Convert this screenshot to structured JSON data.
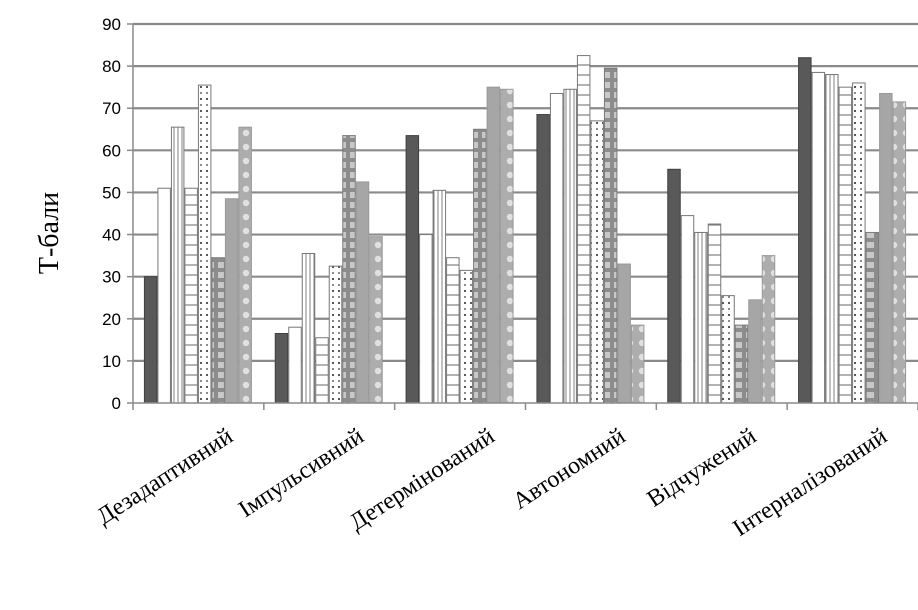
{
  "chart_data": {
    "type": "bar",
    "ylabel": "Т-бали",
    "ylim": [
      0,
      90
    ],
    "yticks": [
      0,
      10,
      20,
      30,
      40,
      50,
      60,
      70,
      80,
      90
    ],
    "grid": true,
    "categories": [
      "Дезадаптивний",
      "Імпульсивний",
      "Детермінований",
      "Автономний",
      "Відчужений",
      "Інтерналізований"
    ],
    "series": [
      {
        "color": "#595959",
        "pattern": "solid",
        "values": [
          30,
          16.5,
          63.5,
          68.5,
          55.5,
          82
        ]
      },
      {
        "color": "#ffffff",
        "pattern": "outline",
        "values": [
          51,
          18,
          40,
          73.5,
          44.5,
          78.5
        ]
      },
      {
        "color": "#ffffff",
        "pattern": "vertical",
        "values": [
          65.5,
          35.5,
          50.5,
          74.5,
          40.5,
          78
        ]
      },
      {
        "color": "#ffffff",
        "pattern": "horizontal",
        "values": [
          51,
          15.5,
          34.5,
          82.5,
          42.5,
          75
        ]
      },
      {
        "color": "#ffffff",
        "pattern": "dotted",
        "values": [
          75.5,
          32.5,
          31.5,
          67,
          25.5,
          76
        ]
      },
      {
        "color": "#909090",
        "pattern": "brick",
        "values": [
          34.5,
          63.5,
          65,
          79.5,
          18.5,
          40.5
        ]
      },
      {
        "color": "#a6a6a6",
        "pattern": "solid-light",
        "values": [
          48.5,
          52.5,
          75,
          33,
          24.5,
          73.5
        ]
      },
      {
        "color": "#ababab",
        "pattern": "circles",
        "values": [
          65.5,
          39.5,
          74.5,
          18.5,
          35,
          71.5
        ]
      }
    ]
  }
}
